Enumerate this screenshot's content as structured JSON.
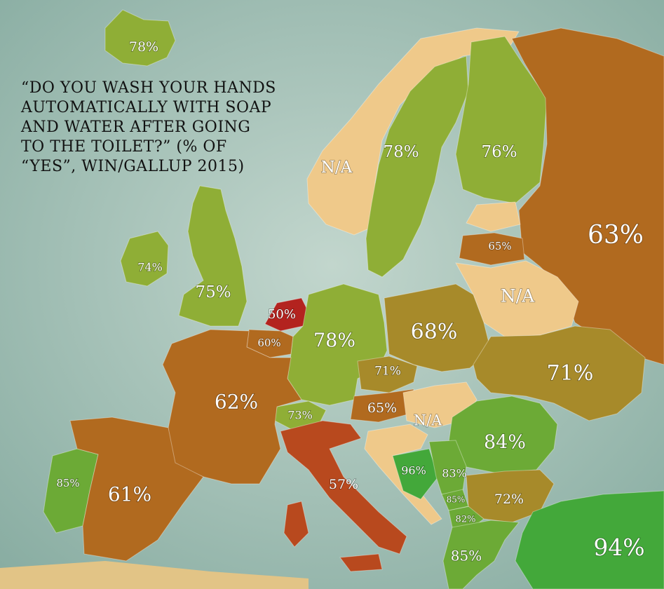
{
  "title_lines": [
    "“Do you wash your hands",
    "automatically with soap",
    "and water after going",
    "to the toilet?” (% of",
    "“yes”, WIN/Gallup 2015)"
  ],
  "colors": {
    "sea": "#9fbfb4",
    "na": "#efc98a",
    "c57": "#b8491e",
    "c50": "#b3231f",
    "c60_65": "#b16a1f",
    "c68_72": "#a78a2a",
    "c73_78": "#8fae36",
    "c82_85": "#6caa36",
    "c94_96": "#43a83a"
  },
  "chart_data": {
    "type": "map",
    "title": "“Do you wash your hands automatically with soap and water after going to the toilet?” (% of “yes”, WIN/Gallup 2015)",
    "regions": [
      {
        "id": "iceland",
        "label": "78%",
        "color_key": "c73_78"
      },
      {
        "id": "norway",
        "label": "N/A",
        "color_key": "na"
      },
      {
        "id": "sweden",
        "label": "78%",
        "color_key": "c73_78"
      },
      {
        "id": "finland",
        "label": "76%",
        "color_key": "c73_78"
      },
      {
        "id": "russia",
        "label": "63%",
        "color_key": "c60_65"
      },
      {
        "id": "lithuania",
        "label": "65%",
        "color_key": "c60_65"
      },
      {
        "id": "belarus",
        "label": "N/A",
        "color_key": "na"
      },
      {
        "id": "ireland",
        "label": "74%",
        "color_key": "c73_78"
      },
      {
        "id": "uk",
        "label": "75%",
        "color_key": "c73_78"
      },
      {
        "id": "netherlands",
        "label": "50%",
        "color_key": "c50"
      },
      {
        "id": "belgium",
        "label": "60%",
        "color_key": "c60_65"
      },
      {
        "id": "germany",
        "label": "78%",
        "color_key": "c73_78"
      },
      {
        "id": "poland",
        "label": "68%",
        "color_key": "c68_72"
      },
      {
        "id": "ukraine",
        "label": "71%",
        "color_key": "c68_72"
      },
      {
        "id": "czechia",
        "label": "71%",
        "color_key": "c68_72"
      },
      {
        "id": "austria",
        "label": "65%",
        "color_key": "c60_65"
      },
      {
        "id": "switzerland",
        "label": "73%",
        "color_key": "c73_78"
      },
      {
        "id": "france",
        "label": "62%",
        "color_key": "c60_65"
      },
      {
        "id": "hungary",
        "label": "N/A",
        "color_key": "na"
      },
      {
        "id": "romania",
        "label": "84%",
        "color_key": "c82_85"
      },
      {
        "id": "italy",
        "label": "57%",
        "color_key": "c57"
      },
      {
        "id": "bosnia",
        "label": "96%",
        "color_key": "c94_96"
      },
      {
        "id": "serbia",
        "label": "83%",
        "color_key": "c82_85"
      },
      {
        "id": "kosovo",
        "label": "85%",
        "color_key": "c82_85"
      },
      {
        "id": "macedonia",
        "label": "82%",
        "color_key": "c82_85"
      },
      {
        "id": "bulgaria",
        "label": "72%",
        "color_key": "c68_72"
      },
      {
        "id": "greece",
        "label": "85%",
        "color_key": "c82_85"
      },
      {
        "id": "turkey",
        "label": "94%",
        "color_key": "c94_96"
      },
      {
        "id": "portugal",
        "label": "85%",
        "color_key": "c82_85"
      },
      {
        "id": "spain",
        "label": "61%",
        "color_key": "c60_65"
      }
    ]
  }
}
